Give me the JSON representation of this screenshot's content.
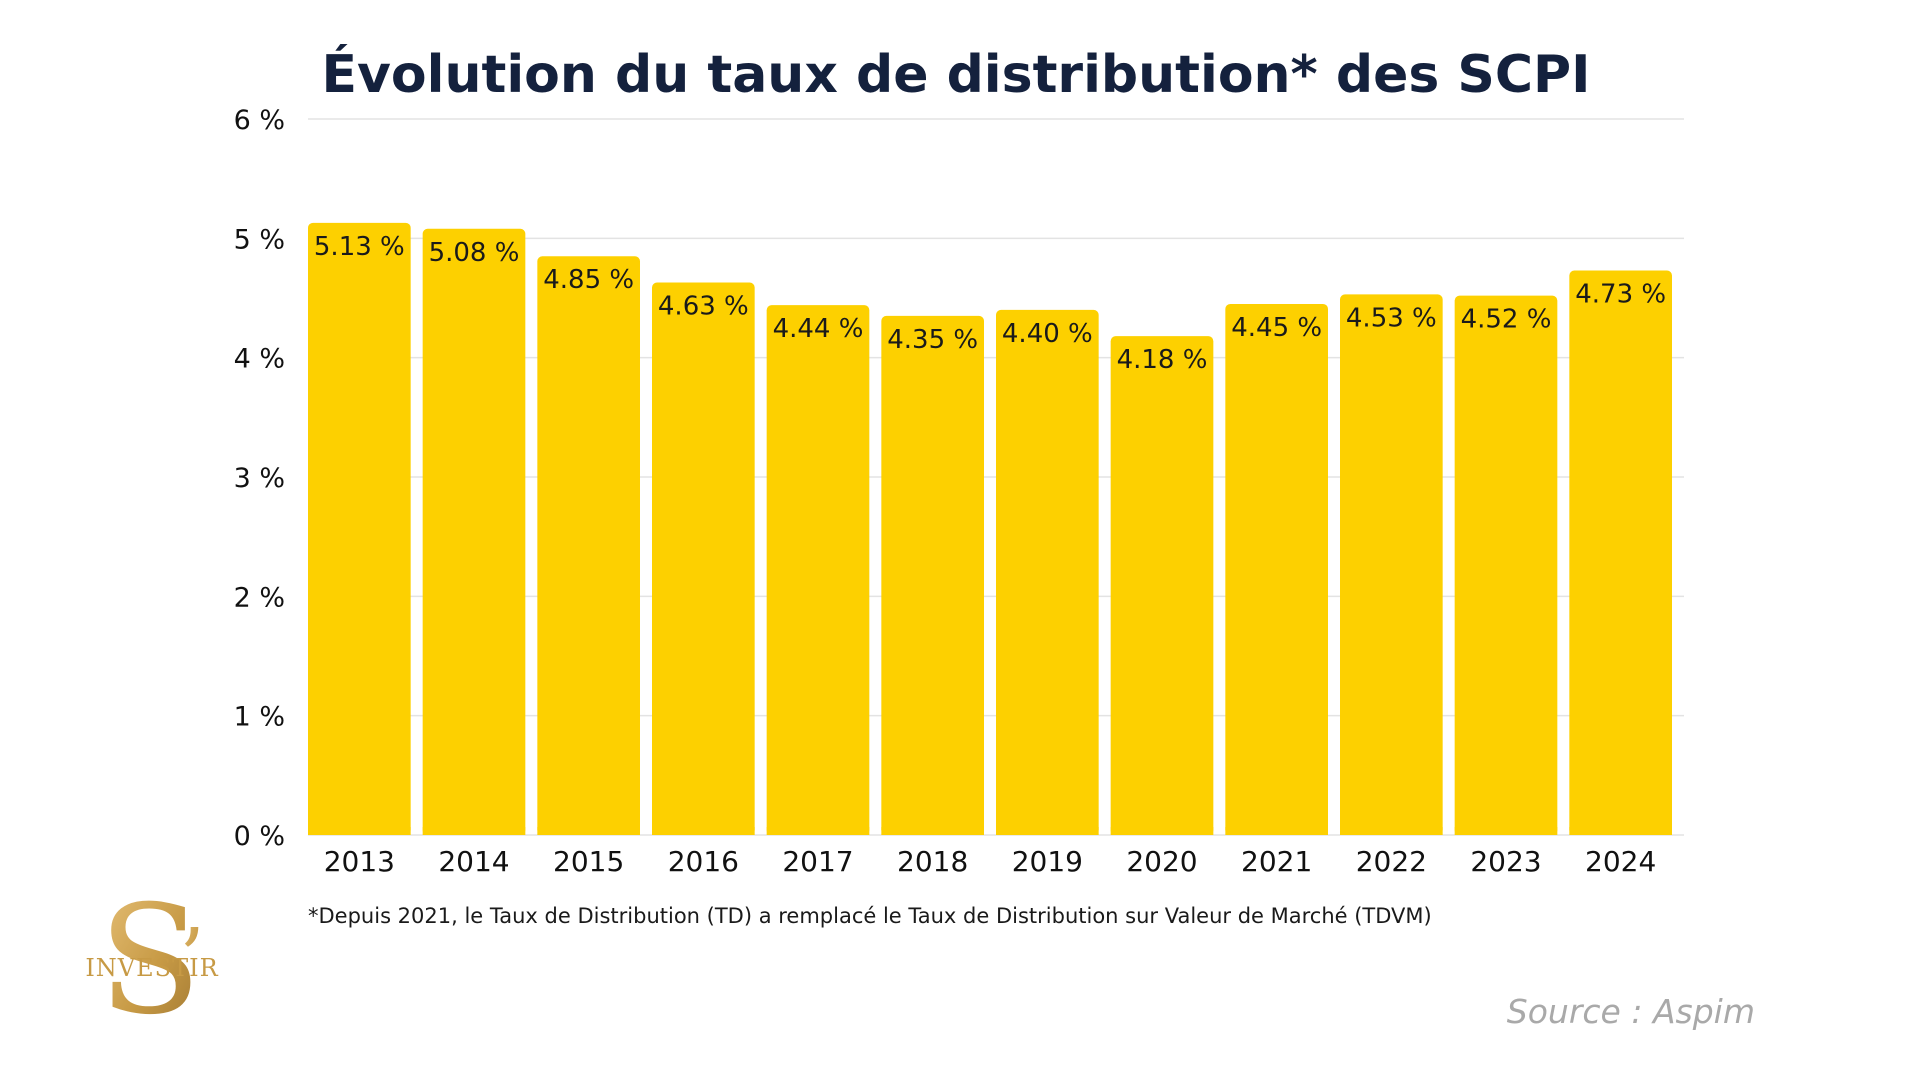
{
  "colors": {
    "bar": "#fdd000",
    "title": "#14213d",
    "grid": "#e3e3e3",
    "source": "#a9a9a9",
    "logo_gold": "#c79a45"
  },
  "logo": {
    "mark": "S",
    "apostrophe": "’",
    "text": "INVESTIR"
  },
  "footnote": "*Depuis 2021, le Taux de Distribution (TD) a remplacé le Taux de Distribution sur Valeur de Marché (TDVM)",
  "source": "Source : Aspim",
  "chart_data": {
    "type": "bar",
    "title": "Évolution du taux de distribution* des SCPI",
    "xlabel": "",
    "ylabel": "",
    "ylim": [
      0,
      6
    ],
    "y_ticks": [
      0,
      1,
      2,
      3,
      4,
      5,
      6
    ],
    "y_tick_labels": [
      "0 %",
      "1 %",
      "2 %",
      "3 %",
      "4 %",
      "5 %",
      "6 %"
    ],
    "grid": true,
    "categories": [
      "2013",
      "2014",
      "2015",
      "2016",
      "2017",
      "2018",
      "2019",
      "2020",
      "2021",
      "2022",
      "2023",
      "2024"
    ],
    "values": [
      5.13,
      5.08,
      4.85,
      4.63,
      4.44,
      4.35,
      4.4,
      4.18,
      4.45,
      4.53,
      4.52,
      4.73
    ],
    "data_labels": [
      "5.13 %",
      "5.08 %",
      "4.85 %",
      "4.63 %",
      "4.44 %",
      "4.35 %",
      "4.40 %",
      "4.18 %",
      "4.45 %",
      "4.53 %",
      "4.52 %",
      "4.73 %"
    ]
  }
}
